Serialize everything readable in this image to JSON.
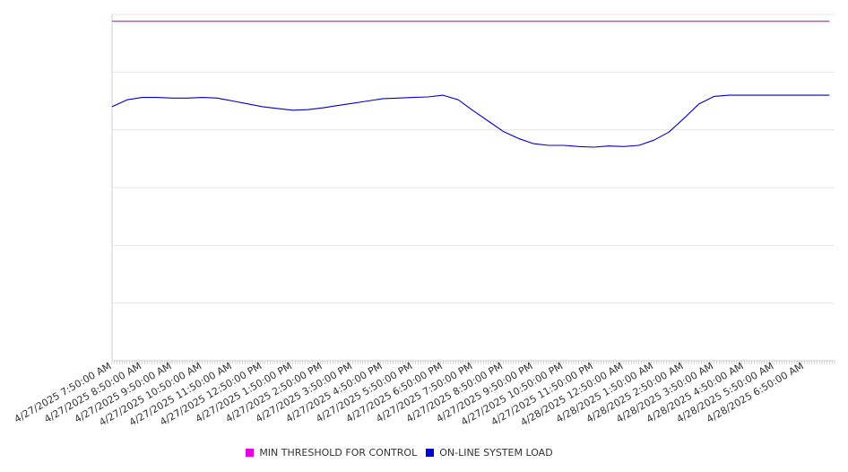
{
  "chart_data": {
    "type": "line",
    "title": "",
    "xlabel": "",
    "ylabel": "",
    "grid": true,
    "legend_position": "bottom-center",
    "ylim": [
      0,
      6
    ],
    "x_tick_labels": [
      "4/27/2025 7:50:00 AM",
      "4/27/2025 8:50:00 AM",
      "4/27/2025 9:50:00 AM",
      "4/27/2025 10:50:00 AM",
      "4/27/2025 11:50:00 AM",
      "4/27/2025 12:50:00 PM",
      "4/27/2025 1:50:00 PM",
      "4/27/2025 2:50:00 PM",
      "4/27/2025 3:50:00 PM",
      "4/27/2025 4:50:00 PM",
      "4/27/2025 5:50:00 PM",
      "4/27/2025 6:50:00 PM",
      "4/27/2025 7:50:00 PM",
      "4/27/2025 8:50:00 PM",
      "4/27/2025 9:50:00 PM",
      "4/27/2025 10:50:00 PM",
      "4/27/2025 11:50:00 PM",
      "4/28/2025 12:50:00 AM",
      "4/28/2025 1:50:00 AM",
      "4/28/2025 2:50:00 AM",
      "4/28/2025 3:50:00 AM",
      "4/28/2025 4:50:00 AM",
      "4/28/2025 5:50:00 AM",
      "4/28/2025 6:50:00 AM"
    ],
    "x_hours": [
      0,
      0.5,
      1,
      1.5,
      2,
      2.5,
      3,
      3.5,
      4,
      4.5,
      5,
      5.5,
      6,
      6.5,
      7,
      7.5,
      8,
      8.5,
      9,
      9.5,
      10,
      10.5,
      11,
      11.5,
      12,
      12.5,
      13,
      13.5,
      14,
      14.5,
      15,
      15.5,
      16,
      16.5,
      17,
      17.5,
      18,
      18.5,
      19,
      19.5,
      20,
      20.5,
      21,
      21.5,
      22,
      22.5,
      23,
      23.5,
      23.83
    ],
    "series": [
      {
        "name": "MIN THRESHOLD FOR CONTROL",
        "color": "#e000e0",
        "values": [
          5.88,
          5.88,
          5.88,
          5.88,
          5.88,
          5.88,
          5.88,
          5.88,
          5.88,
          5.88,
          5.88,
          5.88,
          5.88,
          5.88,
          5.88,
          5.88,
          5.88,
          5.88,
          5.88,
          5.88,
          5.88,
          5.88,
          5.88,
          5.88,
          5.88,
          5.88,
          5.88,
          5.88,
          5.88,
          5.88,
          5.88,
          5.88,
          5.88,
          5.88,
          5.88,
          5.88,
          5.88,
          5.88,
          5.88,
          5.88,
          5.88,
          5.88,
          5.88,
          5.88,
          5.88,
          5.88,
          5.88,
          5.88,
          5.88
        ]
      },
      {
        "name": "ON-LINE SYSTEM LOAD",
        "color": "#0000cc",
        "values": [
          4.4,
          4.52,
          4.56,
          4.56,
          4.55,
          4.55,
          4.56,
          4.55,
          4.5,
          4.45,
          4.4,
          4.37,
          4.34,
          4.35,
          4.38,
          4.42,
          4.46,
          4.5,
          4.54,
          4.55,
          4.56,
          4.57,
          4.6,
          4.52,
          4.33,
          4.15,
          3.97,
          3.85,
          3.76,
          3.73,
          3.73,
          3.71,
          3.7,
          3.72,
          3.71,
          3.73,
          3.82,
          3.96,
          4.2,
          4.45,
          4.58,
          4.6,
          4.6,
          4.6,
          4.6,
          4.6,
          4.6,
          4.6,
          4.6
        ]
      }
    ]
  }
}
